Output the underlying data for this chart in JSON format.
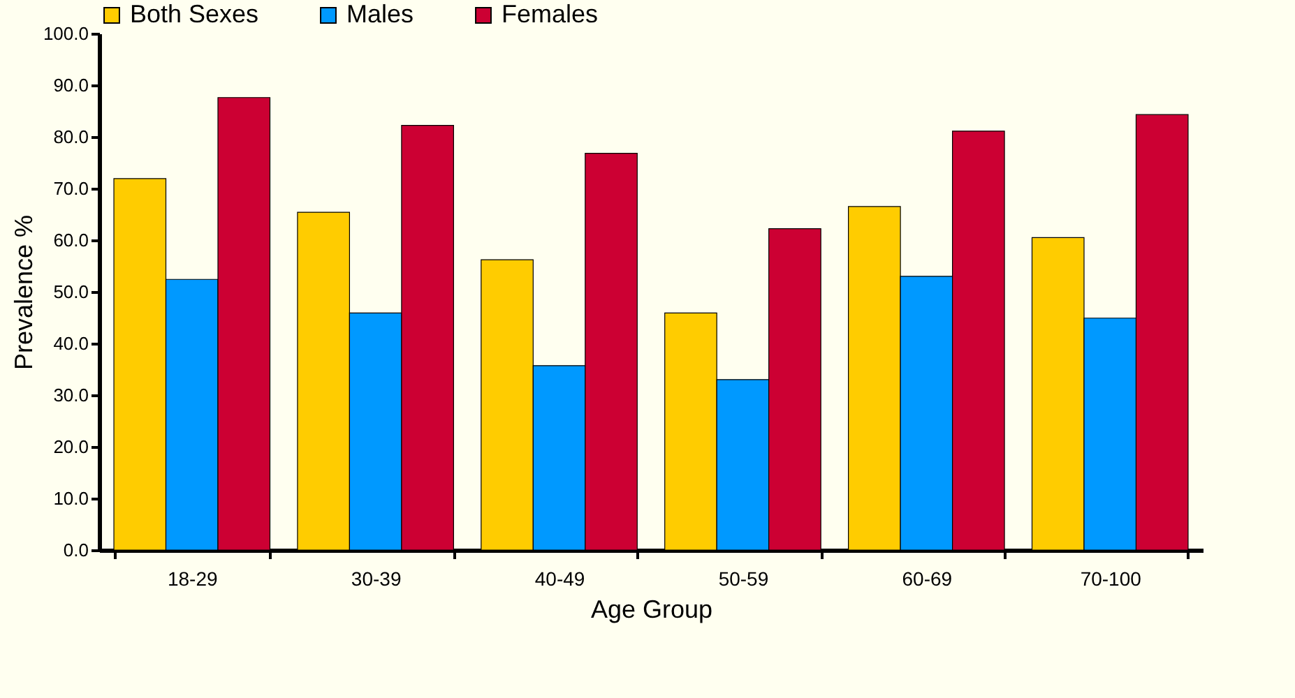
{
  "chart_data": {
    "type": "bar",
    "xlabel": "Age Group",
    "ylabel": "Prevalence %",
    "categories": [
      "18-29",
      "30-39",
      "40-49",
      "50-59",
      "60-69",
      "70-100"
    ],
    "series": [
      {
        "name": "Both Sexes",
        "color": "#ffcc00",
        "values": [
          71.9,
          65.4,
          56.2,
          45.9,
          66.5,
          60.5
        ]
      },
      {
        "name": "Males",
        "color": "#0099ff",
        "values": [
          52.4,
          45.9,
          35.7,
          33.0,
          53.0,
          44.9
        ]
      },
      {
        "name": "Females",
        "color": "#cc0033",
        "values": [
          87.6,
          82.2,
          76.8,
          62.2,
          81.1,
          84.3
        ]
      }
    ],
    "ylim": [
      0,
      100
    ],
    "yticks": [
      {
        "value": 0,
        "label": "0.0"
      },
      {
        "value": 10,
        "label": "10.0"
      },
      {
        "value": 20,
        "label": "20.0"
      },
      {
        "value": 30,
        "label": "30.0"
      },
      {
        "value": 40,
        "label": "40.0"
      },
      {
        "value": 50,
        "label": "50.0"
      },
      {
        "value": 60,
        "label": "60.0"
      },
      {
        "value": 70,
        "label": "70.0"
      },
      {
        "value": 80,
        "label": "80.0"
      },
      {
        "value": 90,
        "label": "90.0"
      },
      {
        "value": 100,
        "label": "100.0"
      }
    ],
    "legend": "top",
    "grid": false
  }
}
